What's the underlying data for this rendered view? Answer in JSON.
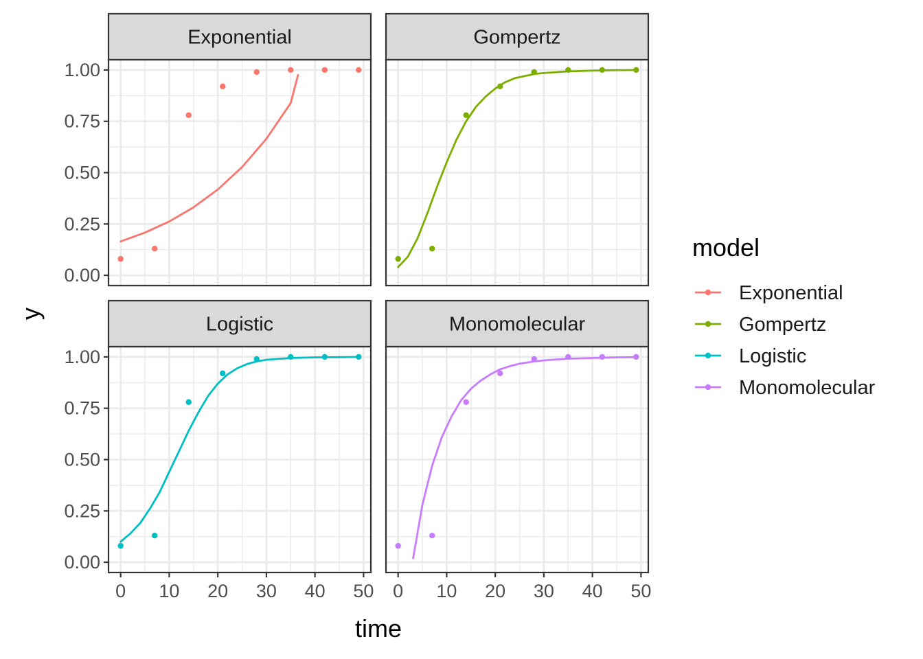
{
  "chart_data": {
    "type": "line",
    "facet_layout": "2x2",
    "xlabel": "time",
    "ylabel": "y",
    "xlim": [
      -2.5,
      51.5
    ],
    "ylim": [
      -0.05,
      1.05
    ],
    "x_ticks": [
      0,
      10,
      20,
      30,
      40,
      50
    ],
    "x_tick_labels": [
      "0",
      "10",
      "20",
      "30",
      "40",
      "50"
    ],
    "y_ticks": [
      0,
      0.25,
      0.5,
      0.75,
      1
    ],
    "y_tick_labels": [
      "0.00",
      "0.25",
      "0.50",
      "0.75",
      "1.00"
    ],
    "grid": true,
    "observed_x": [
      0,
      7,
      14,
      21,
      28,
      35,
      42,
      49
    ],
    "legend": {
      "title": "model",
      "placement": "right",
      "entries": [
        "Exponential",
        "Gompertz",
        "Logistic",
        "Monomolecular"
      ]
    },
    "panels": [
      {
        "name": "Exponential",
        "color": "#F8766D",
        "points": [
          0.08,
          0.13,
          0.78,
          0.92,
          0.99,
          1.0,
          1.0,
          1.0
        ],
        "curve": {
          "x": [
            0,
            5,
            10,
            15,
            20,
            25,
            30,
            35,
            36.5
          ],
          "y": [
            0.165,
            0.208,
            0.262,
            0.331,
            0.418,
            0.527,
            0.665,
            0.839,
            0.975
          ]
        }
      },
      {
        "name": "Gompertz",
        "color": "#7CAE00",
        "points": [
          0.08,
          0.13,
          0.78,
          0.92,
          0.99,
          1.0,
          1.0,
          1.0
        ],
        "curve": {
          "x": [
            0,
            2,
            4,
            6,
            8,
            10,
            12,
            14,
            16,
            18,
            20,
            22,
            24,
            26,
            28,
            30,
            35,
            40,
            45,
            49
          ],
          "y": [
            0.04,
            0.09,
            0.18,
            0.3,
            0.43,
            0.55,
            0.66,
            0.75,
            0.82,
            0.87,
            0.91,
            0.94,
            0.96,
            0.97,
            0.98,
            0.985,
            0.993,
            0.997,
            0.999,
            1.0
          ]
        }
      },
      {
        "name": "Logistic",
        "color": "#00BFC4",
        "points": [
          0.08,
          0.13,
          0.78,
          0.92,
          0.99,
          1.0,
          1.0,
          1.0
        ],
        "curve": {
          "x": [
            0,
            2,
            4,
            6,
            8,
            10,
            12,
            14,
            16,
            18,
            20,
            22,
            24,
            26,
            28,
            30,
            35,
            40,
            45,
            49
          ],
          "y": [
            0.1,
            0.14,
            0.19,
            0.26,
            0.34,
            0.44,
            0.54,
            0.64,
            0.73,
            0.81,
            0.87,
            0.915,
            0.945,
            0.965,
            0.978,
            0.986,
            0.995,
            0.998,
            0.999,
            1.0
          ]
        }
      },
      {
        "name": "Monomolecular",
        "color": "#C77CFF",
        "points": [
          0.08,
          0.13,
          0.78,
          0.92,
          0.99,
          1.0,
          1.0,
          1.0
        ],
        "curve": {
          "x": [
            3.1,
            5,
            7,
            9,
            11,
            13,
            15,
            17,
            19,
            21,
            23,
            25,
            28,
            31,
            35,
            40,
            45,
            49
          ],
          "y": [
            0.02,
            0.28,
            0.47,
            0.61,
            0.71,
            0.79,
            0.845,
            0.885,
            0.915,
            0.94,
            0.955,
            0.967,
            0.978,
            0.985,
            0.991,
            0.995,
            0.998,
            0.999
          ]
        }
      }
    ]
  }
}
